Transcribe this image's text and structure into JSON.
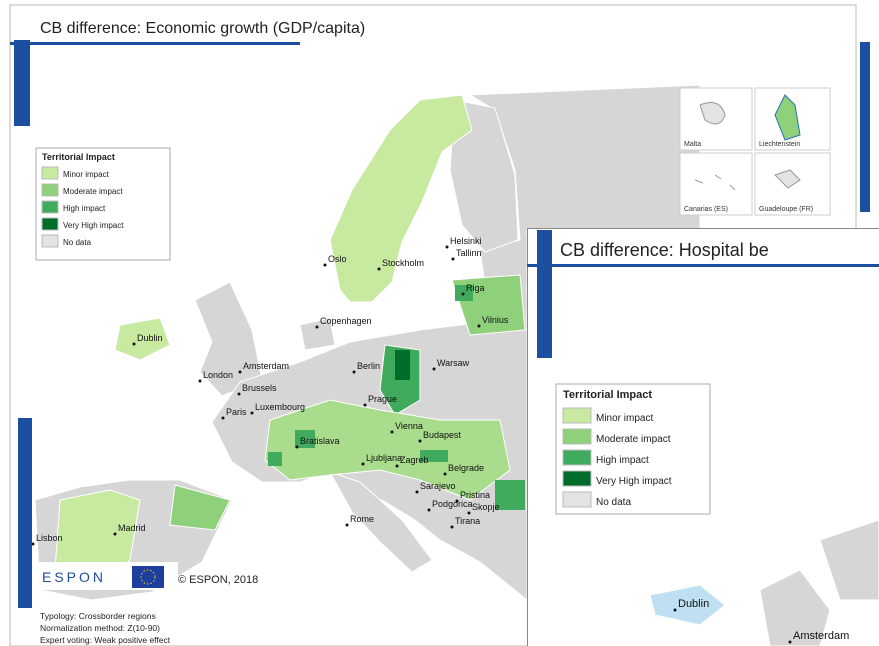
{
  "map1": {
    "title": "CB difference: Economic growth (GDP/capita)",
    "legend": {
      "title": "Territorial Impact",
      "items": [
        {
          "label": "Minor impact",
          "color": "#c7e9a0"
        },
        {
          "label": "Moderate impact",
          "color": "#8fd17a"
        },
        {
          "label": "High impact",
          "color": "#41ab5d"
        },
        {
          "label": "Very High impact",
          "color": "#006d2c"
        },
        {
          "label": "No data",
          "color": "#e3e3e3"
        }
      ]
    },
    "cities": [
      "Oslo",
      "Stockholm",
      "Helsinki",
      "Tallinn",
      "Riga",
      "Vilnius",
      "Copenhagen",
      "Dublin",
      "Amsterdam",
      "London",
      "Brussels",
      "Berlin",
      "Warsaw",
      "Prague",
      "Paris",
      "Luxembourg",
      "Vienna",
      "Bratislava",
      "Budapest",
      "Ljubljana",
      "Zagreb",
      "Belgrade",
      "Sarajevo",
      "Podgorica",
      "Pristina",
      "Skopje",
      "Tirana",
      "Rome",
      "Madrid",
      "Lisbon"
    ],
    "insets": [
      "Malta",
      "Liechtenstein",
      "Canarias (ES)",
      "Guadeloupe (FR)"
    ],
    "logo": "ESPON",
    "copyright": "© ESPON, 2018",
    "notes": [
      "Typology: Crossborder regions",
      "Normalization method: Z(10-90)",
      "Expert voting: Weak positive effect"
    ]
  },
  "map2": {
    "title": "CB difference: Hospital be",
    "legend": {
      "title": "Territorial Impact",
      "items": [
        {
          "label": "Minor impact",
          "color": "#c7e9a0"
        },
        {
          "label": "Moderate impact",
          "color": "#8fd17a"
        },
        {
          "label": "High impact",
          "color": "#41ab5d"
        },
        {
          "label": "Very High impact",
          "color": "#006d2c"
        },
        {
          "label": "No data",
          "color": "#e3e3e3"
        }
      ]
    },
    "cities": [
      "Dublin",
      "Amsterdam"
    ]
  }
}
